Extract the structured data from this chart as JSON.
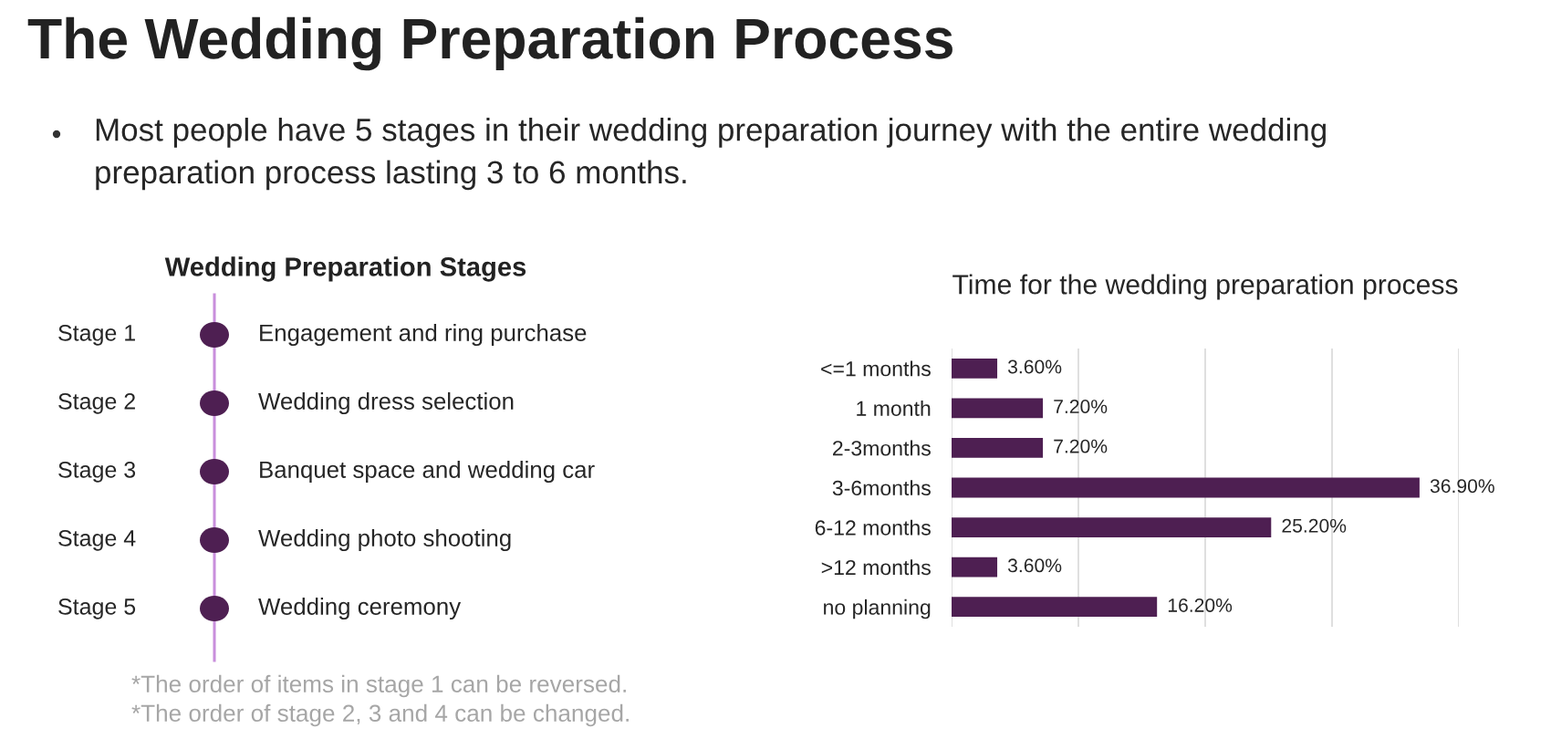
{
  "chart_data": [
    {
      "type": "other",
      "title": "The Wedding Preparation Process",
      "subtitle": "Most people have 5 stages in their wedding preparation journey with the entire wedding preparation process lasting 3 to 6 months."
    },
    {
      "type": "other",
      "title": "Wedding Preparation Stages",
      "y_categories": [
        "Stage 1",
        "Stage 2",
        "Stage 3",
        "Stage 4",
        "Stage 5"
      ],
      "y2_categories": [
        "Engagement and ring purchase",
        "Wedding dress selection",
        "Banquet space and wedding car",
        "Wedding photo shooting",
        "Wedding ceremony"
      ],
      "color": "#4e1f52",
      "annotations": [
        "*The order of items in stage 1 can be reversed.",
        "*The order of stage 2, 3 and 4 can be changed."
      ]
    },
    {
      "type": "bar",
      "orientation": "horizontal",
      "title": "Time for the wedding preparation process",
      "categories": [
        "<=1 months",
        "1 month",
        "2-3months",
        "3-6months",
        "6-12 months",
        ">12 months",
        "no planning"
      ],
      "values": [
        3.6,
        7.2,
        7.2,
        36.9,
        25.2,
        3.6,
        16.2
      ],
      "value_labels": [
        "3.60%",
        "7.20%",
        "7.20%",
        "36.90%",
        "25.20%",
        "3.60%",
        "16.20%"
      ],
      "color": "#4e1f52",
      "xlim": [
        0,
        40
      ],
      "xticks": [
        0,
        10,
        20,
        30,
        40
      ],
      "grid": "x",
      "tick_labels": "y"
    }
  ]
}
